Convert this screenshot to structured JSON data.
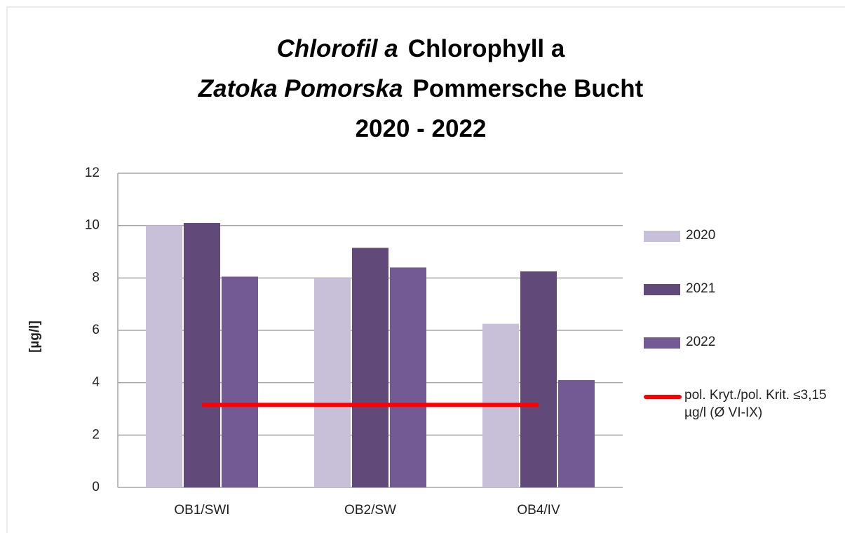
{
  "chart_data": {
    "type": "bar",
    "title": [
      [
        "Chlorofil a",
        "Chlorophyll a"
      ],
      [
        "Zatoka Pomorska",
        "Pommersche Bucht"
      ],
      [
        "2020 - 2022"
      ]
    ],
    "y_label": "[µg/l]",
    "categories": [
      "OB1/SWI",
      "OB2/SW",
      "OB4/IV"
    ],
    "series": [
      {
        "name": "2020",
        "color": "#c8c0d8",
        "values": [
          10.0,
          8.0,
          6.25
        ]
      },
      {
        "name": "2021",
        "color": "#614a7a",
        "values": [
          10.1,
          9.15,
          8.25
        ]
      },
      {
        "name": "2022",
        "color": "#735a94",
        "values": [
          8.05,
          8.4,
          4.1
        ]
      },
      {
        "name": "pol. Kryt./pol. Krit. ≤3,15 µg/l (Ø VI-IX)",
        "type": "line",
        "color": "#ff0000",
        "values": [
          3.15,
          3.15,
          3.15
        ]
      }
    ],
    "ylim": [
      0,
      12
    ],
    "yticks": [
      0,
      2,
      4,
      6,
      8,
      10,
      12
    ],
    "grid": true,
    "legend": "right"
  }
}
